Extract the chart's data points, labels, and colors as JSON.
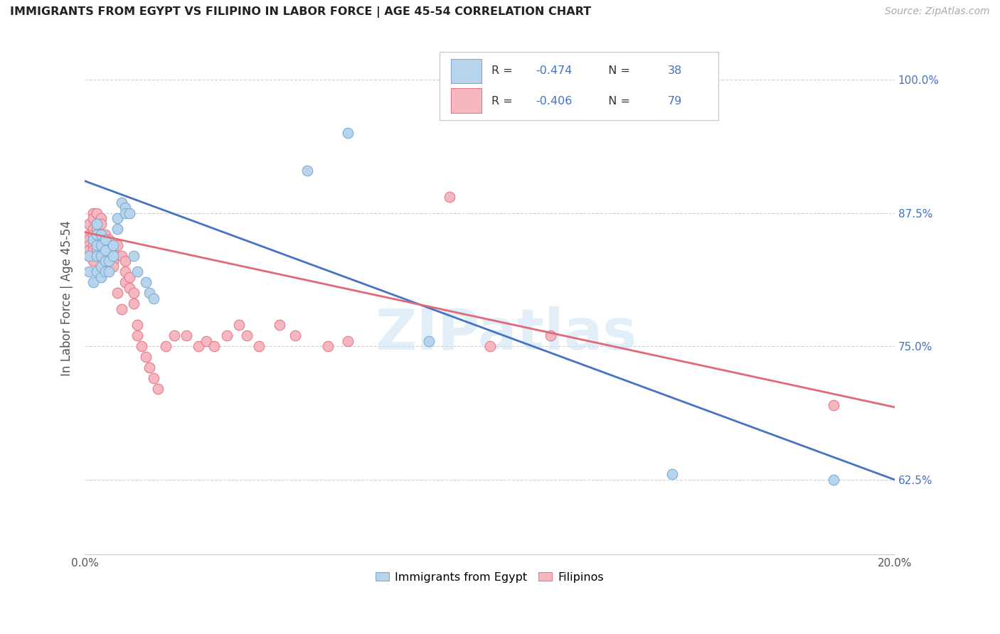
{
  "title": "IMMIGRANTS FROM EGYPT VS FILIPINO IN LABOR FORCE | AGE 45-54 CORRELATION CHART",
  "source": "Source: ZipAtlas.com",
  "ylabel_label": "In Labor Force | Age 45-54",
  "xlim": [
    0.0,
    0.2
  ],
  "ylim": [
    0.555,
    1.035
  ],
  "yticks": [
    0.625,
    0.75,
    0.875,
    1.0
  ],
  "yticklabels": [
    "62.5%",
    "75.0%",
    "87.5%",
    "100.0%"
  ],
  "egypt_color": "#b8d4ec",
  "egypt_edge": "#7aaed6",
  "filipino_color": "#f5b8c0",
  "filipino_edge": "#e87888",
  "egypt_line_color": "#4472C4",
  "filipino_line_color": "#E06878",
  "legend_egypt_R": "-0.474",
  "legend_egypt_N": "38",
  "legend_filipino_R": "-0.406",
  "legend_filipino_N": "79",
  "watermark": "ZIPatlas",
  "egypt_x": [
    0.001,
    0.001,
    0.002,
    0.002,
    0.003,
    0.003,
    0.003,
    0.003,
    0.003,
    0.004,
    0.004,
    0.004,
    0.004,
    0.004,
    0.005,
    0.005,
    0.005,
    0.005,
    0.006,
    0.006,
    0.007,
    0.007,
    0.008,
    0.008,
    0.009,
    0.01,
    0.01,
    0.011,
    0.012,
    0.013,
    0.015,
    0.016,
    0.017,
    0.055,
    0.065,
    0.085,
    0.145,
    0.185
  ],
  "egypt_y": [
    0.835,
    0.82,
    0.85,
    0.81,
    0.865,
    0.855,
    0.845,
    0.835,
    0.82,
    0.855,
    0.845,
    0.835,
    0.825,
    0.815,
    0.85,
    0.84,
    0.83,
    0.82,
    0.83,
    0.82,
    0.845,
    0.835,
    0.87,
    0.86,
    0.885,
    0.88,
    0.875,
    0.875,
    0.835,
    0.82,
    0.81,
    0.8,
    0.795,
    0.915,
    0.95,
    0.755,
    0.63,
    0.625
  ],
  "filipino_x": [
    0.001,
    0.001,
    0.001,
    0.001,
    0.001,
    0.001,
    0.002,
    0.002,
    0.002,
    0.002,
    0.002,
    0.002,
    0.002,
    0.002,
    0.002,
    0.003,
    0.003,
    0.003,
    0.003,
    0.003,
    0.003,
    0.003,
    0.003,
    0.004,
    0.004,
    0.004,
    0.004,
    0.004,
    0.004,
    0.005,
    0.005,
    0.005,
    0.005,
    0.005,
    0.005,
    0.006,
    0.006,
    0.006,
    0.006,
    0.007,
    0.007,
    0.007,
    0.007,
    0.008,
    0.008,
    0.009,
    0.009,
    0.01,
    0.01,
    0.01,
    0.011,
    0.011,
    0.012,
    0.012,
    0.013,
    0.013,
    0.014,
    0.015,
    0.016,
    0.017,
    0.018,
    0.02,
    0.022,
    0.025,
    0.028,
    0.03,
    0.032,
    0.035,
    0.038,
    0.04,
    0.043,
    0.048,
    0.052,
    0.06,
    0.065,
    0.09,
    0.1,
    0.115,
    0.185
  ],
  "filipino_y": [
    0.865,
    0.855,
    0.85,
    0.845,
    0.84,
    0.835,
    0.875,
    0.87,
    0.86,
    0.855,
    0.85,
    0.845,
    0.84,
    0.835,
    0.83,
    0.875,
    0.865,
    0.86,
    0.855,
    0.85,
    0.845,
    0.84,
    0.835,
    0.87,
    0.865,
    0.855,
    0.85,
    0.845,
    0.84,
    0.855,
    0.85,
    0.845,
    0.84,
    0.835,
    0.83,
    0.85,
    0.845,
    0.84,
    0.835,
    0.84,
    0.835,
    0.83,
    0.825,
    0.845,
    0.8,
    0.835,
    0.785,
    0.83,
    0.82,
    0.81,
    0.815,
    0.805,
    0.8,
    0.79,
    0.77,
    0.76,
    0.75,
    0.74,
    0.73,
    0.72,
    0.71,
    0.75,
    0.76,
    0.76,
    0.75,
    0.755,
    0.75,
    0.76,
    0.77,
    0.76,
    0.75,
    0.77,
    0.76,
    0.75,
    0.755,
    0.89,
    0.75,
    0.76,
    0.695
  ]
}
